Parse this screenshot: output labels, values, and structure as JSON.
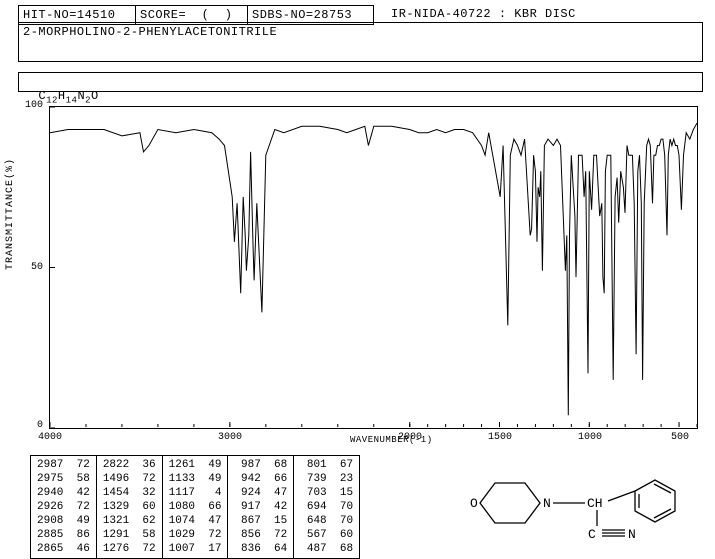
{
  "header": {
    "hit_no": "HIT-NO=14510",
    "score": "SCORE=  (  )",
    "sdbs_no": "SDBS-NO=28753",
    "ir_info": "IR-NIDA-40722 : KBR DISC",
    "compound": "2-MORPHOLINO-2-PHENYLACETONITRILE",
    "formula_plain": "C12H14N2O"
  },
  "chart": {
    "type": "line",
    "ylabel": "TRANSMITTANCE(%)",
    "xlabel": "WAVENUMBER(-1)",
    "ylim": [
      0,
      100
    ],
    "xlim": [
      4000,
      400
    ],
    "yticks": [
      0,
      50,
      100
    ],
    "xticks": [
      4000,
      3000,
      2000,
      1500,
      1000,
      500
    ],
    "line_color": "#000000",
    "background_color": "#ffffff",
    "border_color": "#000000",
    "data": [
      [
        4000,
        92
      ],
      [
        3900,
        93
      ],
      [
        3800,
        93
      ],
      [
        3700,
        93
      ],
      [
        3600,
        91
      ],
      [
        3500,
        92
      ],
      [
        3480,
        86
      ],
      [
        3450,
        88
      ],
      [
        3400,
        93
      ],
      [
        3300,
        92
      ],
      [
        3200,
        93
      ],
      [
        3100,
        92
      ],
      [
        3060,
        90
      ],
      [
        3030,
        88
      ],
      [
        2987,
        72
      ],
      [
        2975,
        58
      ],
      [
        2960,
        70
      ],
      [
        2940,
        42
      ],
      [
        2926,
        72
      ],
      [
        2915,
        60
      ],
      [
        2908,
        49
      ],
      [
        2895,
        60
      ],
      [
        2885,
        86
      ],
      [
        2870,
        55
      ],
      [
        2865,
        46
      ],
      [
        2850,
        70
      ],
      [
        2822,
        36
      ],
      [
        2800,
        85
      ],
      [
        2750,
        93
      ],
      [
        2700,
        92
      ],
      [
        2600,
        94
      ],
      [
        2500,
        94
      ],
      [
        2400,
        93
      ],
      [
        2350,
        92
      ],
      [
        2300,
        93
      ],
      [
        2250,
        94
      ],
      [
        2230,
        88
      ],
      [
        2200,
        94
      ],
      [
        2100,
        94
      ],
      [
        2000,
        93
      ],
      [
        1950,
        92
      ],
      [
        1900,
        92
      ],
      [
        1850,
        93
      ],
      [
        1800,
        92
      ],
      [
        1750,
        93
      ],
      [
        1700,
        93
      ],
      [
        1650,
        92
      ],
      [
        1600,
        88
      ],
      [
        1580,
        85
      ],
      [
        1560,
        92
      ],
      [
        1496,
        72
      ],
      [
        1480,
        88
      ],
      [
        1454,
        32
      ],
      [
        1440,
        85
      ],
      [
        1420,
        90
      ],
      [
        1400,
        88
      ],
      [
        1380,
        85
      ],
      [
        1360,
        90
      ],
      [
        1329,
        60
      ],
      [
        1321,
        62
      ],
      [
        1310,
        85
      ],
      [
        1300,
        80
      ],
      [
        1291,
        58
      ],
      [
        1285,
        75
      ],
      [
        1276,
        72
      ],
      [
        1270,
        80
      ],
      [
        1261,
        49
      ],
      [
        1250,
        88
      ],
      [
        1230,
        90
      ],
      [
        1200,
        88
      ],
      [
        1180,
        90
      ],
      [
        1160,
        88
      ],
      [
        1133,
        49
      ],
      [
        1125,
        60
      ],
      [
        1117,
        4
      ],
      [
        1110,
        60
      ],
      [
        1100,
        85
      ],
      [
        1080,
        66
      ],
      [
        1074,
        47
      ],
      [
        1060,
        85
      ],
      [
        1040,
        85
      ],
      [
        1029,
        72
      ],
      [
        1020,
        80
      ],
      [
        1007,
        17
      ],
      [
        1000,
        80
      ],
      [
        987,
        68
      ],
      [
        975,
        85
      ],
      [
        960,
        85
      ],
      [
        942,
        66
      ],
      [
        930,
        70
      ],
      [
        924,
        47
      ],
      [
        917,
        42
      ],
      [
        910,
        80
      ],
      [
        900,
        85
      ],
      [
        890,
        85
      ],
      [
        880,
        85
      ],
      [
        867,
        15
      ],
      [
        856,
        72
      ],
      [
        845,
        78
      ],
      [
        836,
        64
      ],
      [
        825,
        80
      ],
      [
        810,
        75
      ],
      [
        801,
        67
      ],
      [
        790,
        88
      ],
      [
        780,
        85
      ],
      [
        770,
        85
      ],
      [
        760,
        85
      ],
      [
        750,
        70
      ],
      [
        739,
        23
      ],
      [
        730,
        80
      ],
      [
        720,
        85
      ],
      [
        710,
        70
      ],
      [
        703,
        15
      ],
      [
        694,
        70
      ],
      [
        680,
        88
      ],
      [
        670,
        90
      ],
      [
        660,
        88
      ],
      [
        648,
        70
      ],
      [
        640,
        85
      ],
      [
        630,
        85
      ],
      [
        620,
        88
      ],
      [
        610,
        88
      ],
      [
        600,
        90
      ],
      [
        590,
        90
      ],
      [
        580,
        85
      ],
      [
        567,
        60
      ],
      [
        560,
        85
      ],
      [
        550,
        90
      ],
      [
        540,
        88
      ],
      [
        530,
        90
      ],
      [
        520,
        88
      ],
      [
        510,
        88
      ],
      [
        500,
        85
      ],
      [
        487,
        68
      ],
      [
        475,
        85
      ],
      [
        460,
        92
      ],
      [
        440,
        90
      ],
      [
        420,
        93
      ],
      [
        400,
        95
      ]
    ]
  },
  "peaks": {
    "columns": [
      [
        "2987  72",
        "2975  58",
        "2940  42",
        "2926  72",
        "2908  49",
        "2885  86",
        "2865  46"
      ],
      [
        "2822  36",
        "1496  72",
        "1454  32",
        "1329  60",
        "1321  62",
        "1291  58",
        "1276  72"
      ],
      [
        "1261  49",
        "1133  49",
        "1117   4",
        "1080  66",
        "1074  47",
        "1029  72",
        "1007  17"
      ],
      [
        " 987  68",
        " 942  66",
        " 924  47",
        " 917  42",
        " 867  15",
        " 856  72",
        " 836  64"
      ],
      [
        " 801  67",
        " 739  23",
        " 703  15",
        " 694  70",
        " 648  70",
        " 567  60",
        " 487  68"
      ]
    ]
  },
  "style": {
    "font": "Courier New",
    "header_fontsize": 12,
    "tick_fontsize": 10
  }
}
